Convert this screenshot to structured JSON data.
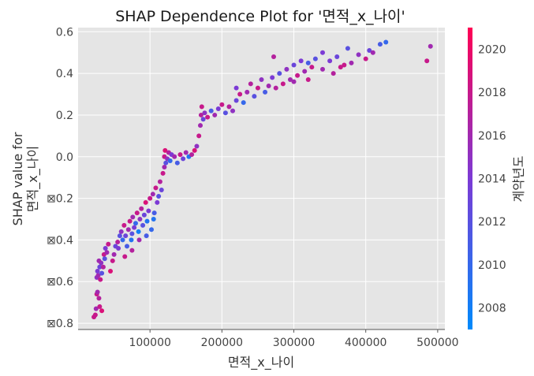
{
  "chart_data": {
    "type": "scatter",
    "title": "SHAP Dependence Plot for '면적_x_나이'",
    "xlabel": "면적_x_나이",
    "ylabel_lines": [
      "SHAP value for",
      "면적_x_나이"
    ],
    "colorbar_label": "계약년도",
    "xlim": [
      0,
      510000
    ],
    "ylim": [
      -0.83,
      0.62
    ],
    "x_ticks": [
      100000,
      200000,
      300000,
      400000,
      500000
    ],
    "x_tick_labels": [
      "100000",
      "200000",
      "300000",
      "400000",
      "500000"
    ],
    "y_ticks": [
      0.6,
      0.4,
      0.2,
      0.0,
      -0.2,
      -0.4,
      -0.6,
      -0.8
    ],
    "y_tick_labels": [
      "0.6",
      "0.4",
      "0.2",
      "0.0",
      "⊠0.2",
      "⊠0.4",
      "⊠0.6",
      "⊠0.8"
    ],
    "color_range": [
      2007,
      2021
    ],
    "color_ticks": [
      2008,
      2010,
      2012,
      2014,
      2016,
      2018,
      2020
    ],
    "color_tick_labels": [
      "2008",
      "2010",
      "2012",
      "2014",
      "2016",
      "2018",
      "2020"
    ],
    "colors": {
      "low": "#008afb",
      "mid": "#7c3ad5",
      "high": "#ff0053",
      "plot_bg": "#e5e5e5",
      "grid": "#ffffff"
    },
    "grid": true,
    "points": [
      [
        22000,
        -0.77,
        2018
      ],
      [
        24000,
        -0.76,
        2018
      ],
      [
        25000,
        -0.73,
        2016
      ],
      [
        26000,
        -0.66,
        2018
      ],
      [
        27000,
        -0.65,
        2016
      ],
      [
        29000,
        -0.68,
        2017
      ],
      [
        33000,
        -0.74,
        2019
      ],
      [
        30000,
        -0.72,
        2018
      ],
      [
        26000,
        -0.58,
        2015
      ],
      [
        28000,
        -0.57,
        2016
      ],
      [
        31000,
        -0.59,
        2018
      ],
      [
        27000,
        -0.55,
        2014
      ],
      [
        30000,
        -0.53,
        2013
      ],
      [
        32000,
        -0.51,
        2015
      ],
      [
        35000,
        -0.53,
        2017
      ],
      [
        33000,
        -0.56,
        2012
      ],
      [
        29000,
        -0.5,
        2016
      ],
      [
        36000,
        -0.47,
        2018
      ],
      [
        38000,
        -0.44,
        2014
      ],
      [
        40000,
        -0.46,
        2016
      ],
      [
        42000,
        -0.42,
        2018
      ],
      [
        37000,
        -0.49,
        2012
      ],
      [
        45000,
        -0.55,
        2019
      ],
      [
        48000,
        -0.5,
        2018
      ],
      [
        50000,
        -0.47,
        2016
      ],
      [
        52000,
        -0.43,
        2013
      ],
      [
        55000,
        -0.41,
        2017
      ],
      [
        58000,
        -0.38,
        2012
      ],
      [
        56000,
        -0.44,
        2014
      ],
      [
        60000,
        -0.36,
        2015
      ],
      [
        62000,
        -0.4,
        2010
      ],
      [
        64000,
        -0.33,
        2018
      ],
      [
        66000,
        -0.38,
        2013
      ],
      [
        68000,
        -0.43,
        2011
      ],
      [
        70000,
        -0.35,
        2016
      ],
      [
        72000,
        -0.31,
        2018
      ],
      [
        74000,
        -0.4,
        2009
      ],
      [
        75000,
        -0.37,
        2012
      ],
      [
        76000,
        -0.29,
        2016
      ],
      [
        78000,
        -0.34,
        2014
      ],
      [
        80000,
        -0.32,
        2010
      ],
      [
        82000,
        -0.27,
        2018
      ],
      [
        84000,
        -0.36,
        2008
      ],
      [
        86000,
        -0.3,
        2015
      ],
      [
        88000,
        -0.25,
        2017
      ],
      [
        90000,
        -0.33,
        2012
      ],
      [
        92000,
        -0.28,
        2013
      ],
      [
        94000,
        -0.22,
        2019
      ],
      [
        96000,
        -0.31,
        2009
      ],
      [
        98000,
        -0.26,
        2014
      ],
      [
        100000,
        -0.2,
        2018
      ],
      [
        102000,
        -0.35,
        2010
      ],
      [
        104000,
        -0.18,
        2016
      ],
      [
        106000,
        -0.27,
        2011
      ],
      [
        108000,
        -0.15,
        2018
      ],
      [
        110000,
        -0.22,
        2014
      ],
      [
        112000,
        -0.19,
        2012
      ],
      [
        114000,
        -0.12,
        2017
      ],
      [
        116000,
        -0.16,
        2013
      ],
      [
        118000,
        -0.08,
        2018
      ],
      [
        85000,
        -0.4,
        2016
      ],
      [
        95000,
        -0.38,
        2011
      ],
      [
        105000,
        -0.3,
        2009
      ],
      [
        65000,
        -0.48,
        2018
      ],
      [
        75000,
        -0.45,
        2017
      ],
      [
        120000,
        -0.05,
        2016
      ],
      [
        120000,
        0.0,
        2018
      ],
      [
        121000,
        0.03,
        2019
      ],
      [
        122000,
        -0.03,
        2012
      ],
      [
        124000,
        -0.01,
        2015
      ],
      [
        126000,
        0.02,
        2017
      ],
      [
        128000,
        -0.02,
        2010
      ],
      [
        130000,
        0.01,
        2014
      ],
      [
        134000,
        0.0,
        2016
      ],
      [
        138000,
        -0.03,
        2011
      ],
      [
        142000,
        0.01,
        2018
      ],
      [
        146000,
        -0.01,
        2013
      ],
      [
        150000,
        0.02,
        2016
      ],
      [
        154000,
        0.0,
        2009
      ],
      [
        158000,
        0.01,
        2017
      ],
      [
        162000,
        0.03,
        2019
      ],
      [
        165000,
        0.05,
        2015
      ],
      [
        168000,
        0.1,
        2018
      ],
      [
        170000,
        0.15,
        2016
      ],
      [
        171000,
        0.2,
        2017
      ],
      [
        172000,
        0.24,
        2018
      ],
      [
        174000,
        0.18,
        2013
      ],
      [
        176000,
        0.21,
        2015
      ],
      [
        180000,
        0.19,
        2018
      ],
      [
        185000,
        0.22,
        2011
      ],
      [
        190000,
        0.2,
        2016
      ],
      [
        195000,
        0.23,
        2014
      ],
      [
        200000,
        0.25,
        2018
      ],
      [
        205000,
        0.21,
        2012
      ],
      [
        210000,
        0.24,
        2017
      ],
      [
        215000,
        0.22,
        2015
      ],
      [
        220000,
        0.27,
        2013
      ],
      [
        225000,
        0.3,
        2018
      ],
      [
        230000,
        0.26,
        2010
      ],
      [
        235000,
        0.31,
        2016
      ],
      [
        220000,
        0.33,
        2014
      ],
      [
        240000,
        0.35,
        2017
      ],
      [
        245000,
        0.29,
        2012
      ],
      [
        250000,
        0.33,
        2018
      ],
      [
        255000,
        0.37,
        2015
      ],
      [
        260000,
        0.31,
        2011
      ],
      [
        265000,
        0.34,
        2016
      ],
      [
        270000,
        0.38,
        2014
      ],
      [
        275000,
        0.33,
        2017
      ],
      [
        280000,
        0.4,
        2012
      ],
      [
        285000,
        0.35,
        2018
      ],
      [
        290000,
        0.42,
        2015
      ],
      [
        295000,
        0.37,
        2016
      ],
      [
        300000,
        0.44,
        2013
      ],
      [
        305000,
        0.39,
        2018
      ],
      [
        310000,
        0.46,
        2014
      ],
      [
        315000,
        0.41,
        2016
      ],
      [
        320000,
        0.45,
        2011
      ],
      [
        325000,
        0.43,
        2018
      ],
      [
        330000,
        0.47,
        2012
      ],
      [
        340000,
        0.42,
        2016
      ],
      [
        350000,
        0.46,
        2014
      ],
      [
        355000,
        0.4,
        2017
      ],
      [
        360000,
        0.48,
        2013
      ],
      [
        370000,
        0.44,
        2018
      ],
      [
        375000,
        0.52,
        2012
      ],
      [
        380000,
        0.45,
        2016
      ],
      [
        390000,
        0.49,
        2015
      ],
      [
        400000,
        0.47,
        2018
      ],
      [
        405000,
        0.51,
        2013
      ],
      [
        410000,
        0.5,
        2016
      ],
      [
        420000,
        0.54,
        2011
      ],
      [
        428000,
        0.55,
        2010
      ],
      [
        485000,
        0.46,
        2018
      ],
      [
        490000,
        0.53,
        2016
      ],
      [
        272000,
        0.48,
        2017
      ],
      [
        300000,
        0.36,
        2016
      ],
      [
        320000,
        0.37,
        2018
      ],
      [
        340000,
        0.5,
        2014
      ],
      [
        365000,
        0.43,
        2018
      ]
    ]
  }
}
